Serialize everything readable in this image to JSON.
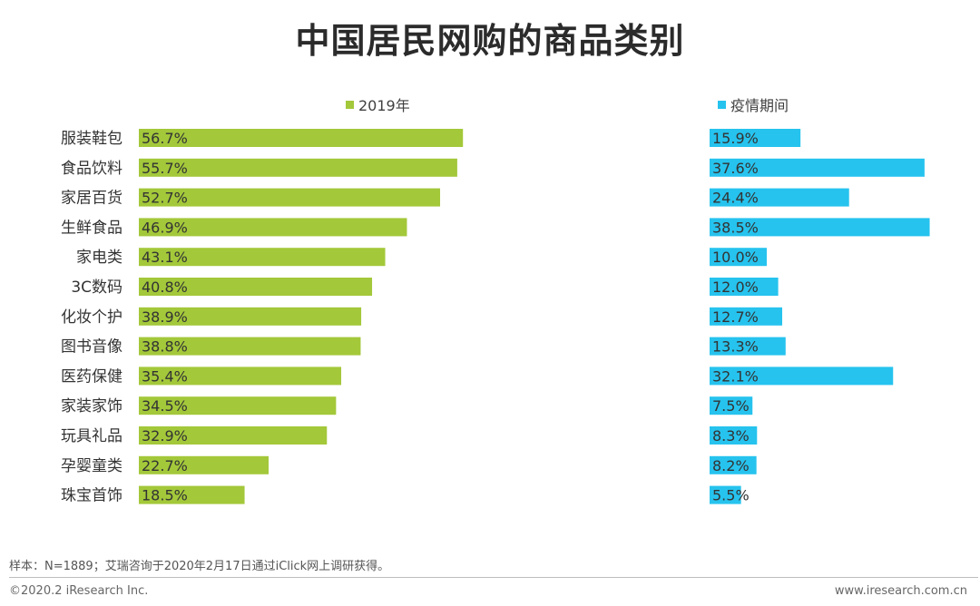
{
  "title": "中国居民网购的商品类别",
  "colors": {
    "series_2019": "#a3c83a",
    "series_epidemic": "#26c3ee"
  },
  "chart_data": {
    "type": "bar",
    "orientation": "horizontal",
    "title": "中国居民网购的商品类别",
    "categories": [
      "服装鞋包",
      "食品饮料",
      "家居百货",
      "生鲜食品",
      "家电类",
      "3C数码",
      "化妆个护",
      "图书音像",
      "医药保健",
      "家装家饰",
      "玩具礼品",
      "孕婴童类",
      "珠宝首饰"
    ],
    "series": [
      {
        "name": "2019年",
        "values": [
          56.7,
          55.7,
          52.7,
          46.9,
          43.1,
          40.8,
          38.9,
          38.8,
          35.4,
          34.5,
          32.9,
          22.7,
          18.5
        ],
        "labels": [
          "56.7%",
          "55.7%",
          "52.7%",
          "46.9%",
          "43.1%",
          "40.8%",
          "38.9%",
          "38.8%",
          "35.4%",
          "34.5%",
          "32.9%",
          "22.7%",
          "18.5%"
        ]
      },
      {
        "name": "疫情期间",
        "values": [
          15.9,
          37.6,
          24.4,
          38.5,
          10.0,
          12.0,
          12.7,
          13.3,
          32.1,
          7.5,
          8.3,
          8.2,
          5.5
        ],
        "labels": [
          "15.9%",
          "37.6%",
          "24.4%",
          "38.5%",
          "10.0%",
          "12.0%",
          "12.7%",
          "13.3%",
          "32.1%",
          "7.5%",
          "8.3%",
          "8.2%",
          "5.5%"
        ]
      }
    ],
    "unit": "%"
  },
  "note": "样本：N=1889；艾瑞咨询于2020年2月17日通过iClick网上调研获得。",
  "footer": {
    "copyright": "©2020.2 iResearch Inc.",
    "website": "www.iresearch.com.cn"
  }
}
